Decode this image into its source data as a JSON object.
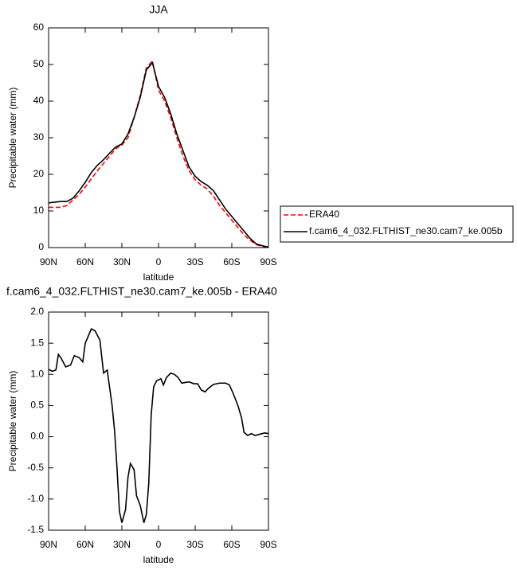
{
  "chart_data": [
    {
      "type": "line",
      "title": "JJA",
      "xlabel": "latitude",
      "ylabel": "Precipitable water (mm)",
      "x": [
        90,
        85,
        80,
        75,
        70,
        65,
        60,
        55,
        50,
        45,
        40,
        35,
        30,
        25,
        20,
        15,
        10,
        5,
        0,
        -5,
        -10,
        -15,
        -20,
        -25,
        -30,
        -35,
        -40,
        -45,
        -50,
        -55,
        -60,
        -65,
        -70,
        -75,
        -80,
        -85,
        -90
      ],
      "series": [
        {
          "name": "ERA40",
          "color": "#ff0000",
          "dash": "dashed",
          "values": [
            11,
            11,
            11,
            11.5,
            13,
            14.5,
            16.5,
            18.8,
            21,
            23,
            25,
            27,
            28,
            30,
            35.5,
            41.5,
            49,
            51,
            43,
            40,
            35.5,
            30,
            25,
            21,
            18.5,
            17,
            16,
            14,
            11.5,
            9.5,
            7.5,
            5.5,
            3.5,
            2,
            0.8,
            0.3,
            0
          ]
        },
        {
          "name": "f.cam6_4_032.FLTHIST_ne30.cam7_ke.005b",
          "color": "#000000",
          "dash": "solid",
          "values": [
            12.2,
            12.4,
            12.6,
            12.6,
            13.5,
            15.5,
            17.8,
            20.5,
            22.5,
            24,
            25.8,
            27.5,
            28.3,
            31,
            35.5,
            41,
            48.5,
            50.5,
            44,
            41,
            36.5,
            31,
            26.5,
            22,
            19.5,
            18,
            17,
            15.5,
            13,
            10.5,
            8.5,
            6.5,
            4.5,
            2.5,
            1,
            0.5,
            0.1
          ]
        }
      ],
      "xlim": [
        90,
        -90
      ],
      "xticks": [
        {
          "value": 90,
          "label": "90N"
        },
        {
          "value": 60,
          "label": "60N"
        },
        {
          "value": 30,
          "label": "30N"
        },
        0,
        {
          "value": -30,
          "label": "30S"
        },
        {
          "value": -60,
          "label": "60S"
        },
        {
          "value": -90,
          "label": "90S"
        }
      ],
      "ylim": [
        0,
        60
      ],
      "yticks": [
        0,
        10,
        20,
        30,
        40,
        50,
        60
      ],
      "grid": false,
      "legend": "right"
    },
    {
      "type": "line",
      "title": "f.cam6_4_032.FLTHIST_ne30.cam7_ke.005b - ERA40",
      "xlabel": "latitude",
      "ylabel": "Precipitable water (mm)",
      "x": [
        90,
        87,
        84,
        82,
        80,
        76,
        72,
        69,
        65,
        62,
        60,
        55,
        52,
        48,
        45,
        42,
        38,
        36,
        34,
        32,
        30,
        27,
        25,
        23,
        20,
        18,
        15,
        12,
        10,
        8,
        6,
        4,
        1.5,
        -2,
        -4,
        -6.5,
        -10,
        -13,
        -16,
        -19,
        -22,
        -25,
        -29,
        -32,
        -35,
        -38,
        -41,
        -45,
        -50,
        -55,
        -58,
        -61,
        -65,
        -68,
        -70,
        -73,
        -76,
        -79,
        -83,
        -87,
        -90
      ],
      "values": [
        1.08,
        1.05,
        1.07,
        1.32,
        1.27,
        1.12,
        1.15,
        1.3,
        1.27,
        1.2,
        1.5,
        1.73,
        1.7,
        1.55,
        1.02,
        1.07,
        0.5,
        0.1,
        -0.5,
        -1.2,
        -1.38,
        -1.17,
        -0.65,
        -0.43,
        -0.53,
        -0.95,
        -1.1,
        -1.38,
        -1.25,
        -0.75,
        0.35,
        0.8,
        0.9,
        0.93,
        0.83,
        0.95,
        1.02,
        1.0,
        0.95,
        0.86,
        0.87,
        0.88,
        0.85,
        0.85,
        0.75,
        0.72,
        0.78,
        0.84,
        0.86,
        0.86,
        0.83,
        0.7,
        0.5,
        0.3,
        0.07,
        0.02,
        0.05,
        0.02,
        0.04,
        0.06,
        0.05
      ],
      "color": "#000000",
      "xlim": [
        90,
        -90
      ],
      "xticks": [
        {
          "value": 90,
          "label": "90N"
        },
        {
          "value": 60,
          "label": "60N"
        },
        {
          "value": 30,
          "label": "30N"
        },
        0,
        {
          "value": -30,
          "label": "30S"
        },
        {
          "value": -60,
          "label": "60S"
        },
        {
          "value": -90,
          "label": "90S"
        }
      ],
      "ylim": [
        -1.5,
        2
      ],
      "yticks": [
        -1.5,
        {
          "value": -1,
          "label": "-1.0"
        },
        -0.5,
        {
          "value": 0,
          "label": "0.0"
        },
        0.5,
        {
          "value": 1,
          "label": "1.0"
        },
        1.5,
        {
          "value": 2,
          "label": "2.0"
        }
      ],
      "grid": false
    }
  ]
}
